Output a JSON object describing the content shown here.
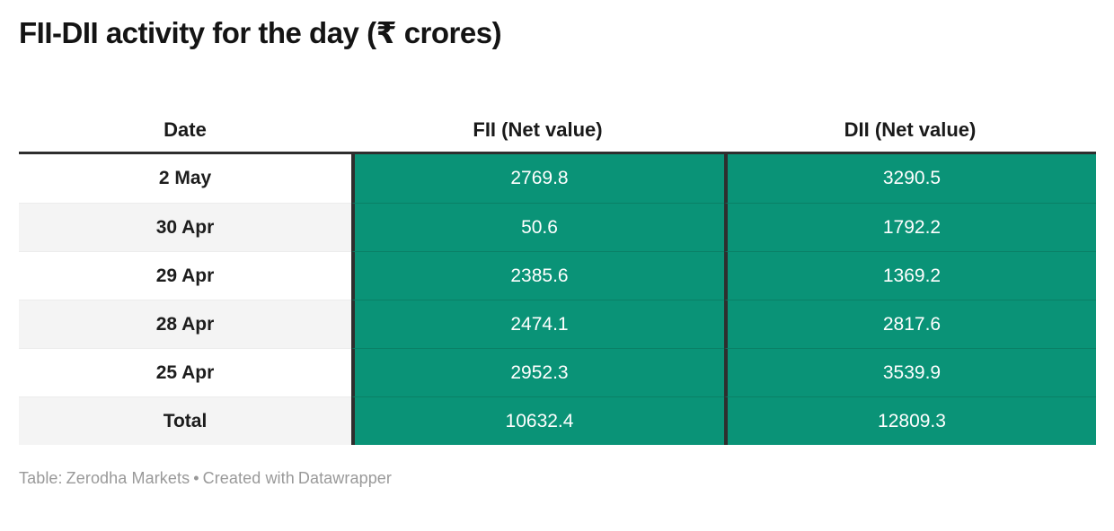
{
  "title": "FII-DII activity for the day (₹ crores)",
  "chart_data": {
    "type": "table",
    "title": "FII-DII activity for the day (₹ crores)",
    "columns": [
      "Date",
      "FII (Net value)",
      "DII (Net value)"
    ],
    "rows": [
      [
        "2 May",
        "2769.8",
        "3290.5"
      ],
      [
        "30 Apr",
        "50.6",
        "1792.2"
      ],
      [
        "29 Apr",
        "2385.6",
        "1369.2"
      ],
      [
        "28 Apr",
        "2474.1",
        "2817.6"
      ],
      [
        "25 Apr",
        "2952.3",
        "3539.9"
      ],
      [
        "Total",
        "10632.4",
        "12809.3"
      ]
    ],
    "totals_row_label": "Total",
    "fii_total": 10632.4,
    "dii_total": 12809.3,
    "layout": {
      "value_columns_background": "green",
      "zebra_striping": true,
      "alignment": "center"
    }
  },
  "footer": {
    "label": "Table:",
    "source": "Zerodha Markets",
    "separator": "•",
    "credit_prefix": "Created with",
    "credit_tool": "Datawrapper"
  },
  "colors": {
    "value_cell_green": "#0a9377",
    "value_cell_divider": "#0a8066",
    "dark_border": "#2e2e2e",
    "stripe_gray": "#f4f4f4",
    "title_text": "#141414",
    "footer_text": "#999999",
    "value_text": "#ffffff"
  }
}
